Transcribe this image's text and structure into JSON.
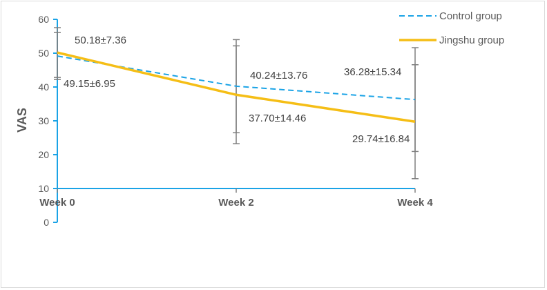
{
  "chart_data": {
    "type": "line",
    "title": "",
    "xlabel": "",
    "ylabel": "VAS",
    "categories": [
      "Week 0",
      "Week 2",
      "Week 4"
    ],
    "y_ticks": [
      "0",
      "10",
      "20",
      "30",
      "40",
      "50",
      "60"
    ],
    "ylim": [
      0,
      60
    ],
    "x_axis_crosses_at": 10,
    "grid": false,
    "legend_position": "top-right",
    "series": [
      {
        "name": "Control group",
        "style": "dashed",
        "color": "#1aa3e6",
        "values": [
          49.15,
          40.24,
          36.28
        ],
        "sd": [
          6.95,
          13.76,
          15.34
        ],
        "labels": [
          "49.15±6.95",
          "40.24±13.76",
          "36.28±15.34"
        ]
      },
      {
        "name": "Jingshu group",
        "style": "solid",
        "color": "#f5be16",
        "values": [
          50.18,
          37.7,
          29.74
        ],
        "sd": [
          7.36,
          14.46,
          16.84
        ],
        "labels": [
          "50.18±7.36",
          "37.70±14.46",
          "29.74±16.84"
        ]
      }
    ],
    "axis_color": "#1aa3e6",
    "errorbar_color": "#7f7f7f"
  }
}
